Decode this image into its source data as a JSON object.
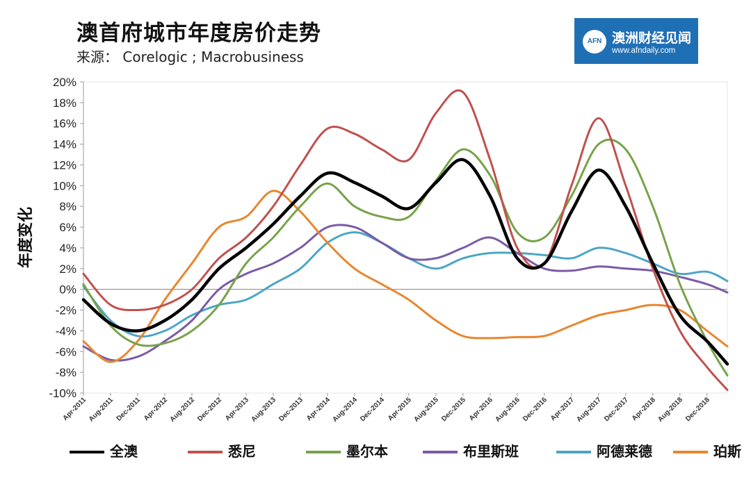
{
  "header": {
    "title": "澳首府城市年度房价走势",
    "source": "来源：  Corelogic ; Macrobusiness"
  },
  "logo": {
    "mark": "AFN",
    "name": "澳洲财经见闻",
    "url": "www.afndaily.com"
  },
  "chart_data": {
    "type": "line",
    "title": "澳首府城市年度房价走势",
    "xlabel": "",
    "ylabel": "年度变化",
    "ylim": [
      -10,
      20
    ],
    "yticks": [
      20,
      18,
      16,
      14,
      12,
      10,
      8,
      6,
      4,
      2,
      0,
      -2,
      -4,
      -6,
      -8,
      -10
    ],
    "ytick_labels": [
      "20%",
      "18%",
      "16%",
      "14%",
      "12%",
      "10%",
      "8%",
      "6%",
      "4%",
      "2%",
      "0%",
      "-2%",
      "-4%",
      "-6%",
      "-8%",
      "-10%"
    ],
    "x_tick_labels": [
      "Apr-2011",
      "Aug-2011",
      "Dec-2011",
      "Apr-2012",
      "Aug-2012",
      "Dec-2012",
      "Apr-2013",
      "Aug-2013",
      "Dec-2013",
      "Apr-2014",
      "Aug-2014",
      "Dec-2014",
      "Apr-2015",
      "Aug-2015",
      "Dec-2015",
      "Apr-2016",
      "Aug-2016",
      "Dec-2016",
      "Apr-2017",
      "Aug-2017",
      "Dec-2017",
      "Apr-2018",
      "Aug-2018",
      "Dec-2018"
    ],
    "grid": false,
    "legend_position": "bottom",
    "series": [
      {
        "name": "全澳",
        "color": "#000000",
        "points": [
          [
            "Apr-2011",
            -1.0
          ],
          [
            "Aug-2011",
            -3.3
          ],
          [
            "Dec-2011",
            -4.0
          ],
          [
            "Apr-2012",
            -3.0
          ],
          [
            "Aug-2012",
            -1.0
          ],
          [
            "Dec-2012",
            2.0
          ],
          [
            "Apr-2013",
            4.0
          ],
          [
            "Aug-2013",
            6.3
          ],
          [
            "Dec-2013",
            9.0
          ],
          [
            "Apr-2014",
            11.2
          ],
          [
            "Aug-2014",
            10.3
          ],
          [
            "Dec-2014",
            9.0
          ],
          [
            "Apr-2015",
            7.8
          ],
          [
            "Aug-2015",
            10.3
          ],
          [
            "Dec-2015",
            12.5
          ],
          [
            "Apr-2016",
            9.0
          ],
          [
            "Aug-2016",
            3.0
          ],
          [
            "Dec-2016",
            2.5
          ],
          [
            "Apr-2017",
            7.5
          ],
          [
            "Aug-2017",
            11.5
          ],
          [
            "Dec-2017",
            8.0
          ],
          [
            "Apr-2018",
            2.5
          ],
          [
            "Aug-2018",
            -2.5
          ],
          [
            "Dec-2018",
            -5.0
          ],
          [
            "Mar-2019",
            -7.2
          ]
        ]
      },
      {
        "name": "悉尼",
        "color": "#c0504d",
        "points": [
          [
            "Apr-2011",
            1.5
          ],
          [
            "Aug-2011",
            -1.5
          ],
          [
            "Dec-2011",
            -2.0
          ],
          [
            "Apr-2012",
            -1.5
          ],
          [
            "Aug-2012",
            0.0
          ],
          [
            "Dec-2012",
            3.0
          ],
          [
            "Apr-2013",
            5.0
          ],
          [
            "Aug-2013",
            8.0
          ],
          [
            "Dec-2013",
            12.0
          ],
          [
            "Apr-2014",
            15.5
          ],
          [
            "Aug-2014",
            15.0
          ],
          [
            "Dec-2014",
            13.5
          ],
          [
            "Apr-2015",
            12.5
          ],
          [
            "Aug-2015",
            17.0
          ],
          [
            "Dec-2015",
            19.0
          ],
          [
            "Apr-2016",
            12.5
          ],
          [
            "Aug-2016",
            4.0
          ],
          [
            "Dec-2016",
            2.5
          ],
          [
            "Apr-2017",
            10.0
          ],
          [
            "Aug-2017",
            16.5
          ],
          [
            "Dec-2017",
            10.0
          ],
          [
            "Apr-2018",
            2.0
          ],
          [
            "Aug-2018",
            -4.0
          ],
          [
            "Dec-2018",
            -7.5
          ],
          [
            "Mar-2019",
            -9.7
          ]
        ]
      },
      {
        "name": "墨尔本",
        "color": "#77a349",
        "points": [
          [
            "Apr-2011",
            0.5
          ],
          [
            "Aug-2011",
            -3.5
          ],
          [
            "Dec-2011",
            -5.3
          ],
          [
            "Apr-2012",
            -5.2
          ],
          [
            "Aug-2012",
            -4.0
          ],
          [
            "Dec-2012",
            -1.5
          ],
          [
            "Apr-2013",
            2.5
          ],
          [
            "Aug-2013",
            5.0
          ],
          [
            "Dec-2013",
            8.0
          ],
          [
            "Apr-2014",
            10.2
          ],
          [
            "Aug-2014",
            8.0
          ],
          [
            "Dec-2014",
            7.0
          ],
          [
            "Apr-2015",
            7.0
          ],
          [
            "Aug-2015",
            10.5
          ],
          [
            "Dec-2015",
            13.5
          ],
          [
            "Apr-2016",
            11.0
          ],
          [
            "Aug-2016",
            5.5
          ],
          [
            "Dec-2016",
            5.0
          ],
          [
            "Apr-2017",
            9.0
          ],
          [
            "Aug-2017",
            14.0
          ],
          [
            "Dec-2017",
            13.5
          ],
          [
            "Apr-2018",
            8.0
          ],
          [
            "Aug-2018",
            0.5
          ],
          [
            "Dec-2018",
            -5.0
          ],
          [
            "Mar-2019",
            -8.3
          ]
        ]
      },
      {
        "name": "布里斯班",
        "color": "#7b5aa6",
        "points": [
          [
            "Apr-2011",
            -5.5
          ],
          [
            "Aug-2011",
            -6.8
          ],
          [
            "Dec-2011",
            -6.5
          ],
          [
            "Apr-2012",
            -5.0
          ],
          [
            "Aug-2012",
            -3.0
          ],
          [
            "Dec-2012",
            0.0
          ],
          [
            "Apr-2013",
            1.5
          ],
          [
            "Aug-2013",
            2.5
          ],
          [
            "Dec-2013",
            4.0
          ],
          [
            "Apr-2014",
            6.0
          ],
          [
            "Aug-2014",
            6.0
          ],
          [
            "Dec-2014",
            4.5
          ],
          [
            "Apr-2015",
            3.0
          ],
          [
            "Aug-2015",
            3.0
          ],
          [
            "Dec-2015",
            4.0
          ],
          [
            "Apr-2016",
            5.0
          ],
          [
            "Aug-2016",
            3.5
          ],
          [
            "Dec-2016",
            2.0
          ],
          [
            "Apr-2017",
            1.8
          ],
          [
            "Aug-2017",
            2.2
          ],
          [
            "Dec-2017",
            2.0
          ],
          [
            "Apr-2018",
            1.8
          ],
          [
            "Aug-2018",
            1.2
          ],
          [
            "Dec-2018",
            0.5
          ],
          [
            "Mar-2019",
            -0.3
          ]
        ]
      },
      {
        "name": "阿德莱德",
        "color": "#4ba6c6",
        "points": [
          [
            "Apr-2011",
            0.3
          ],
          [
            "Aug-2011",
            -3.0
          ],
          [
            "Dec-2011",
            -4.5
          ],
          [
            "Apr-2012",
            -4.0
          ],
          [
            "Aug-2012",
            -2.5
          ],
          [
            "Dec-2012",
            -1.5
          ],
          [
            "Apr-2013",
            -1.0
          ],
          [
            "Aug-2013",
            0.5
          ],
          [
            "Dec-2013",
            2.0
          ],
          [
            "Apr-2014",
            4.5
          ],
          [
            "Aug-2014",
            5.5
          ],
          [
            "Dec-2014",
            4.5
          ],
          [
            "Apr-2015",
            3.0
          ],
          [
            "Aug-2015",
            2.0
          ],
          [
            "Dec-2015",
            3.0
          ],
          [
            "Apr-2016",
            3.5
          ],
          [
            "Aug-2016",
            3.5
          ],
          [
            "Dec-2016",
            3.3
          ],
          [
            "Apr-2017",
            3.0
          ],
          [
            "Aug-2017",
            4.0
          ],
          [
            "Dec-2017",
            3.5
          ],
          [
            "Apr-2018",
            2.5
          ],
          [
            "Aug-2018",
            1.5
          ],
          [
            "Dec-2018",
            1.7
          ],
          [
            "Mar-2019",
            0.8
          ]
        ]
      },
      {
        "name": "珀斯",
        "color": "#e8862f",
        "points": [
          [
            "Apr-2011",
            -5.0
          ],
          [
            "Aug-2011",
            -7.0
          ],
          [
            "Dec-2011",
            -5.0
          ],
          [
            "Apr-2012",
            -1.0
          ],
          [
            "Aug-2012",
            2.5
          ],
          [
            "Dec-2012",
            6.0
          ],
          [
            "Apr-2013",
            7.0
          ],
          [
            "Aug-2013",
            9.5
          ],
          [
            "Dec-2013",
            7.5
          ],
          [
            "Apr-2014",
            4.5
          ],
          [
            "Aug-2014",
            2.0
          ],
          [
            "Dec-2014",
            0.5
          ],
          [
            "Apr-2015",
            -1.0
          ],
          [
            "Aug-2015",
            -3.0
          ],
          [
            "Dec-2015",
            -4.5
          ],
          [
            "Apr-2016",
            -4.7
          ],
          [
            "Aug-2016",
            -4.6
          ],
          [
            "Dec-2016",
            -4.5
          ],
          [
            "Apr-2017",
            -3.5
          ],
          [
            "Aug-2017",
            -2.5
          ],
          [
            "Dec-2017",
            -2.0
          ],
          [
            "Apr-2018",
            -1.5
          ],
          [
            "Aug-2018",
            -2.0
          ],
          [
            "Dec-2018",
            -4.0
          ],
          [
            "Mar-2019",
            -5.5
          ]
        ]
      }
    ]
  }
}
